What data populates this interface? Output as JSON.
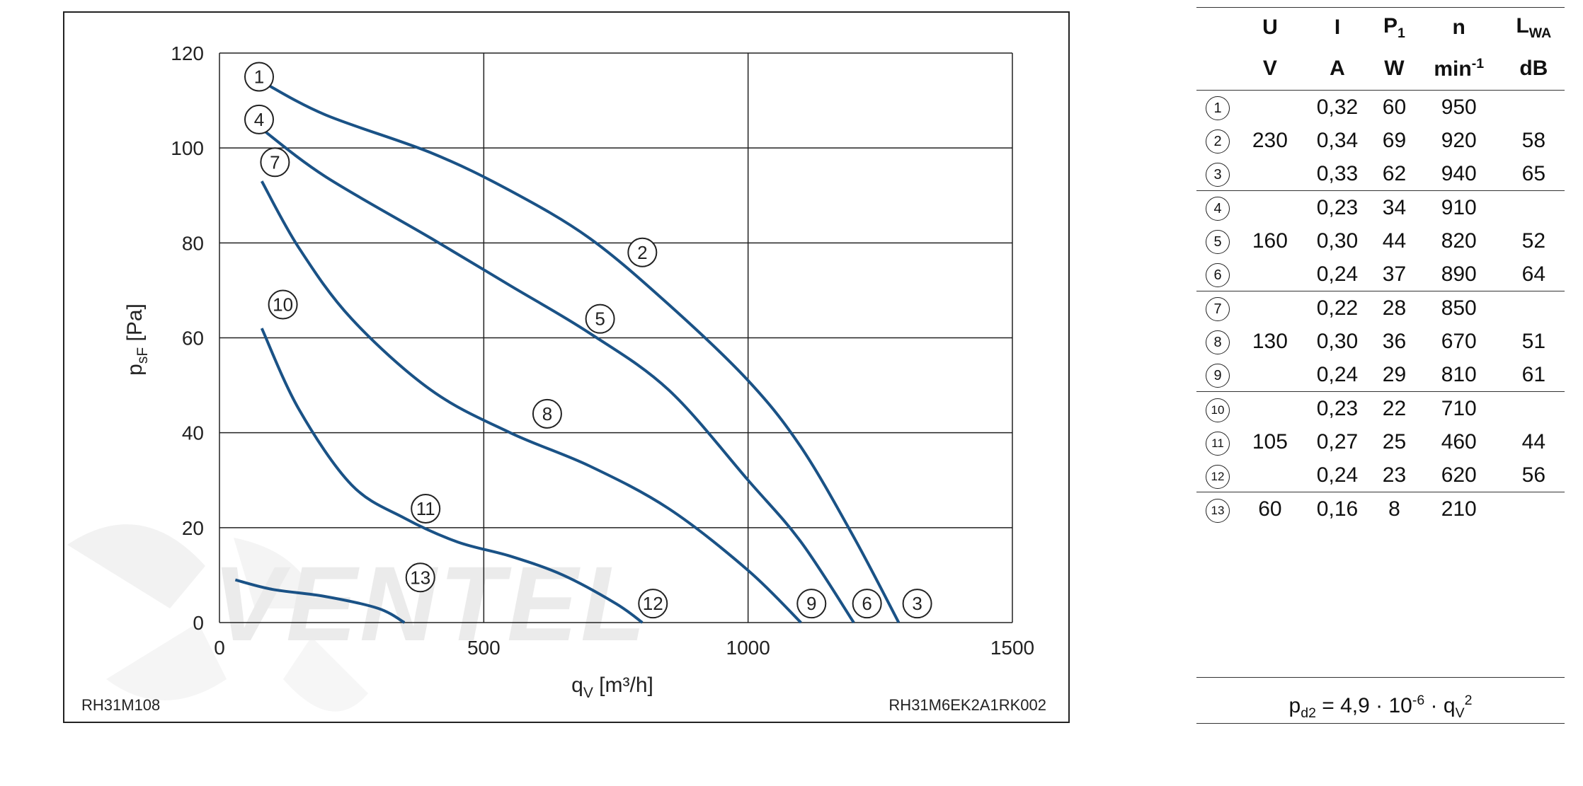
{
  "chart_data": {
    "type": "line",
    "xlabel_main": "q",
    "xlabel_sub": "V",
    "xlabel_unit": " [m³/h]",
    "ylabel_main": "p",
    "ylabel_sub": "sF",
    "ylabel_unit": " [Pa]",
    "xlim": [
      0,
      1500
    ],
    "ylim": [
      0,
      120
    ],
    "x_ticks": [
      0,
      500,
      1000,
      1500
    ],
    "y_ticks": [
      0,
      20,
      40,
      60,
      80,
      100,
      120
    ],
    "grid": true,
    "code_left": "RH31M108",
    "code_right": "RH31M6EK2A1RK002",
    "watermark_text": "VENTEL",
    "line_color": "#1a5286",
    "series": [
      {
        "name": "1-2-3",
        "x": [
          80,
          200,
          400,
          550,
          700,
          850,
          1000,
          1100,
          1200,
          1285
        ],
        "y": [
          114,
          107,
          99,
          91,
          81,
          67,
          51,
          37,
          18,
          0
        ]
      },
      {
        "name": "4-5-6",
        "x": [
          80,
          200,
          400,
          550,
          700,
          850,
          1000,
          1100,
          1200
        ],
        "y": [
          104,
          94,
          81,
          71,
          61,
          49,
          30,
          17,
          0
        ]
      },
      {
        "name": "7-8-9",
        "x": [
          80,
          150,
          250,
          400,
          550,
          700,
          850,
          1000,
          1100
        ],
        "y": [
          93,
          79,
          64,
          49,
          40,
          33,
          24,
          11,
          0
        ]
      },
      {
        "name": "10-11-12",
        "x": [
          80,
          150,
          250,
          350,
          450,
          550,
          650,
          750,
          800
        ],
        "y": [
          62,
          45,
          29,
          22,
          17,
          14,
          10,
          4,
          0
        ]
      },
      {
        "name": "13",
        "x": [
          30,
          100,
          200,
          300,
          350
        ],
        "y": [
          9,
          7,
          5.5,
          3,
          0
        ]
      }
    ],
    "curve_labels": [
      {
        "text": "1",
        "x": 75,
        "y": 115
      },
      {
        "text": "4",
        "x": 75,
        "y": 106
      },
      {
        "text": "7",
        "x": 105,
        "y": 97
      },
      {
        "text": "10",
        "x": 120,
        "y": 67
      },
      {
        "text": "2",
        "x": 800,
        "y": 78
      },
      {
        "text": "5",
        "x": 720,
        "y": 64
      },
      {
        "text": "8",
        "x": 620,
        "y": 44
      },
      {
        "text": "11",
        "x": 390,
        "y": 24
      },
      {
        "text": "13",
        "x": 380,
        "y": 9.5
      },
      {
        "text": "12",
        "x": 820,
        "y": 4
      },
      {
        "text": "9",
        "x": 1120,
        "y": 4
      },
      {
        "text": "6",
        "x": 1225,
        "y": 4
      },
      {
        "text": "3",
        "x": 1320,
        "y": 4
      }
    ]
  },
  "table": {
    "headers": [
      "U",
      "I",
      "P",
      "n",
      "L"
    ],
    "header_subs": [
      "",
      "",
      "1",
      "",
      "WA"
    ],
    "units": [
      "V",
      "A",
      "W",
      "min",
      "dB"
    ],
    "unit_sups": [
      "",
      "",
      "",
      "-1",
      ""
    ],
    "groups": [
      {
        "voltage": "230",
        "rows": [
          {
            "id": "1",
            "i": "0,32",
            "p": "60",
            "n": "950",
            "l": ""
          },
          {
            "id": "2",
            "i": "0,34",
            "p": "69",
            "n": "920",
            "l": "58"
          },
          {
            "id": "3",
            "i": "0,33",
            "p": "62",
            "n": "940",
            "l": "65"
          }
        ]
      },
      {
        "voltage": "160",
        "rows": [
          {
            "id": "4",
            "i": "0,23",
            "p": "34",
            "n": "910",
            "l": ""
          },
          {
            "id": "5",
            "i": "0,30",
            "p": "44",
            "n": "820",
            "l": "52"
          },
          {
            "id": "6",
            "i": "0,24",
            "p": "37",
            "n": "890",
            "l": "64"
          }
        ]
      },
      {
        "voltage": "130",
        "rows": [
          {
            "id": "7",
            "i": "0,22",
            "p": "28",
            "n": "850",
            "l": ""
          },
          {
            "id": "8",
            "i": "0,30",
            "p": "36",
            "n": "670",
            "l": "51"
          },
          {
            "id": "9",
            "i": "0,24",
            "p": "29",
            "n": "810",
            "l": "61"
          }
        ]
      },
      {
        "voltage": "105",
        "rows": [
          {
            "id": "10",
            "i": "0,23",
            "p": "22",
            "n": "710",
            "l": ""
          },
          {
            "id": "11",
            "i": "0,27",
            "p": "25",
            "n": "460",
            "l": "44"
          },
          {
            "id": "12",
            "i": "0,24",
            "p": "23",
            "n": "620",
            "l": "56"
          }
        ]
      },
      {
        "voltage": "60",
        "rows": [
          {
            "id": "13",
            "i": "0,16",
            "p": "8",
            "n": "210",
            "l": ""
          }
        ]
      }
    ]
  },
  "formula": {
    "p": "p",
    "p_sub": "d2",
    "mid": " = 4,9 · 10",
    "exp": "-6",
    "dot_q": " · q",
    "q_sub": "V",
    "q_sup": "2"
  }
}
